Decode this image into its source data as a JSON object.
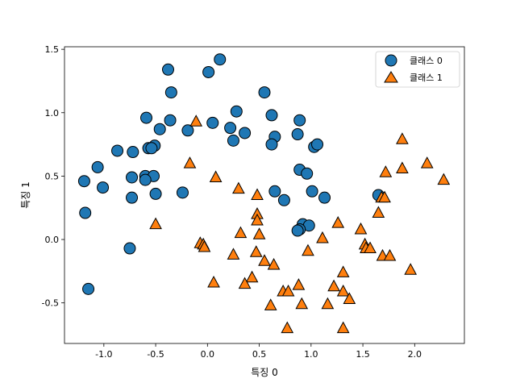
{
  "chart_data": {
    "type": "scatter",
    "xlabel": "특징 0",
    "ylabel": "특징 1",
    "xlim": [
      -1.38,
      2.48
    ],
    "ylim": [
      -0.82,
      1.52
    ],
    "xticks": [
      -1.0,
      -0.5,
      0.0,
      0.5,
      1.0,
      1.5,
      2.0
    ],
    "xtick_labels": [
      "-1.0",
      "-0.5",
      "0.0",
      "0.5",
      "1.0",
      "1.5",
      "2.0"
    ],
    "yticks": [
      -0.5,
      0.0,
      0.5,
      1.0,
      1.5
    ],
    "ytick_labels": [
      "-0.5",
      "0.0",
      "0.5",
      "1.0",
      "1.5"
    ],
    "grid": false,
    "legend_position": "top-right",
    "series": [
      {
        "name": "클래스 0",
        "marker": "circle",
        "color": "#1f77b4",
        "points": [
          [
            -0.38,
            1.34
          ],
          [
            0.12,
            1.42
          ],
          [
            0.01,
            1.32
          ],
          [
            -0.35,
            1.16
          ],
          [
            0.55,
            1.16
          ],
          [
            -0.59,
            0.96
          ],
          [
            -0.36,
            0.94
          ],
          [
            0.28,
            1.01
          ],
          [
            0.62,
            0.98
          ],
          [
            0.89,
            0.94
          ],
          [
            0.05,
            0.92
          ],
          [
            -0.19,
            0.86
          ],
          [
            -0.46,
            0.87
          ],
          [
            0.22,
            0.88
          ],
          [
            0.36,
            0.84
          ],
          [
            0.87,
            0.83
          ],
          [
            0.65,
            0.81
          ],
          [
            0.25,
            0.78
          ],
          [
            0.62,
            0.75
          ],
          [
            1.03,
            0.73
          ],
          [
            1.06,
            0.75
          ],
          [
            -0.51,
            0.74
          ],
          [
            -0.57,
            0.72
          ],
          [
            -0.54,
            0.72
          ],
          [
            -0.87,
            0.7
          ],
          [
            -0.72,
            0.69
          ],
          [
            -1.06,
            0.57
          ],
          [
            -0.73,
            0.49
          ],
          [
            -0.6,
            0.5
          ],
          [
            -0.52,
            0.5
          ],
          [
            -0.6,
            0.47
          ],
          [
            -1.19,
            0.46
          ],
          [
            0.89,
            0.55
          ],
          [
            0.96,
            0.52
          ],
          [
            -1.01,
            0.41
          ],
          [
            0.65,
            0.38
          ],
          [
            1.01,
            0.38
          ],
          [
            -0.5,
            0.36
          ],
          [
            -0.24,
            0.37
          ],
          [
            -0.73,
            0.33
          ],
          [
            0.74,
            0.31
          ],
          [
            1.13,
            0.33
          ],
          [
            1.65,
            0.35
          ],
          [
            -1.18,
            0.21
          ],
          [
            0.92,
            0.12
          ],
          [
            0.98,
            0.11
          ],
          [
            0.89,
            0.08
          ],
          [
            0.87,
            0.07
          ],
          [
            -0.75,
            -0.07
          ],
          [
            -1.15,
            -0.39
          ]
        ]
      },
      {
        "name": "클래스 1",
        "marker": "triangle",
        "color": "#ff7f0e",
        "points": [
          [
            -0.11,
            0.93
          ],
          [
            -0.17,
            0.6
          ],
          [
            0.08,
            0.49
          ],
          [
            0.3,
            0.4
          ],
          [
            0.48,
            0.35
          ],
          [
            1.88,
            0.79
          ],
          [
            1.72,
            0.53
          ],
          [
            1.88,
            0.56
          ],
          [
            2.12,
            0.6
          ],
          [
            2.28,
            0.47
          ],
          [
            1.68,
            0.33
          ],
          [
            1.71,
            0.33
          ],
          [
            1.65,
            0.21
          ],
          [
            0.48,
            0.2
          ],
          [
            0.48,
            0.15
          ],
          [
            1.26,
            0.13
          ],
          [
            1.48,
            0.08
          ],
          [
            -0.5,
            0.12
          ],
          [
            0.32,
            0.05
          ],
          [
            0.5,
            0.04
          ],
          [
            1.11,
            0.01
          ],
          [
            -0.07,
            -0.03
          ],
          [
            -0.04,
            -0.04
          ],
          [
            -0.03,
            -0.06
          ],
          [
            1.52,
            -0.04
          ],
          [
            1.53,
            -0.07
          ],
          [
            1.57,
            -0.07
          ],
          [
            0.47,
            -0.1
          ],
          [
            0.25,
            -0.12
          ],
          [
            0.97,
            -0.09
          ],
          [
            1.69,
            -0.13
          ],
          [
            1.76,
            -0.13
          ],
          [
            0.55,
            -0.17
          ],
          [
            0.64,
            -0.2
          ],
          [
            1.96,
            -0.24
          ],
          [
            1.31,
            -0.26
          ],
          [
            0.43,
            -0.3
          ],
          [
            0.06,
            -0.34
          ],
          [
            0.36,
            -0.35
          ],
          [
            0.88,
            -0.36
          ],
          [
            1.22,
            -0.37
          ],
          [
            0.73,
            -0.41
          ],
          [
            0.78,
            -0.41
          ],
          [
            1.31,
            -0.41
          ],
          [
            1.37,
            -0.47
          ],
          [
            0.61,
            -0.52
          ],
          [
            0.91,
            -0.51
          ],
          [
            1.16,
            -0.51
          ],
          [
            0.77,
            -0.7
          ],
          [
            1.31,
            -0.7
          ]
        ]
      }
    ]
  }
}
